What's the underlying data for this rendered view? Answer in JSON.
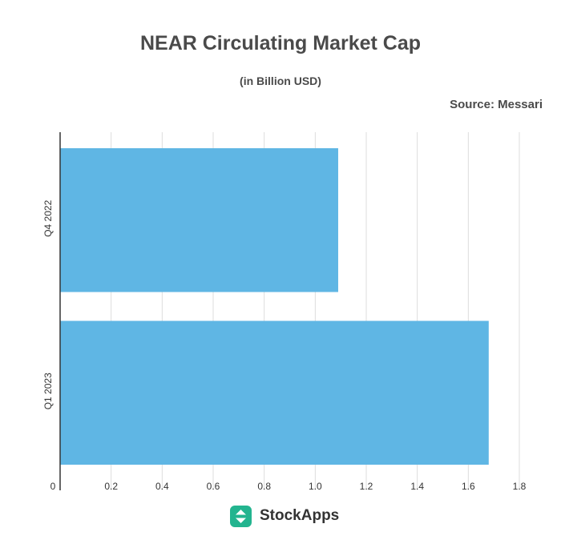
{
  "header": {
    "title": "NEAR Circulating Market Cap",
    "subtitle": "(in Billion USD)",
    "source": "Source: Messari"
  },
  "brand": {
    "name": "StockApps",
    "color": "#23b48f",
    "icon": "stockapps-logo-icon"
  },
  "colors": {
    "bar": "#5fb6e4",
    "grid": "#dddddd",
    "axis": "#333333"
  },
  "chart_data": {
    "type": "bar",
    "orientation": "horizontal",
    "categories": [
      "Q4 2022",
      "Q1 2023"
    ],
    "values": [
      1.09,
      1.68
    ],
    "title": "NEAR Circulating Market Cap",
    "subtitle": "(in Billion USD)",
    "xlabel": "",
    "ylabel": "",
    "xlim": [
      0,
      1.8
    ],
    "xticks": [
      "0",
      "0.2",
      "0.4",
      "0.6",
      "0.8",
      "1.0",
      "1.2",
      "1.4",
      "1.6",
      "1.8"
    ],
    "grid": true,
    "legend": "none"
  }
}
